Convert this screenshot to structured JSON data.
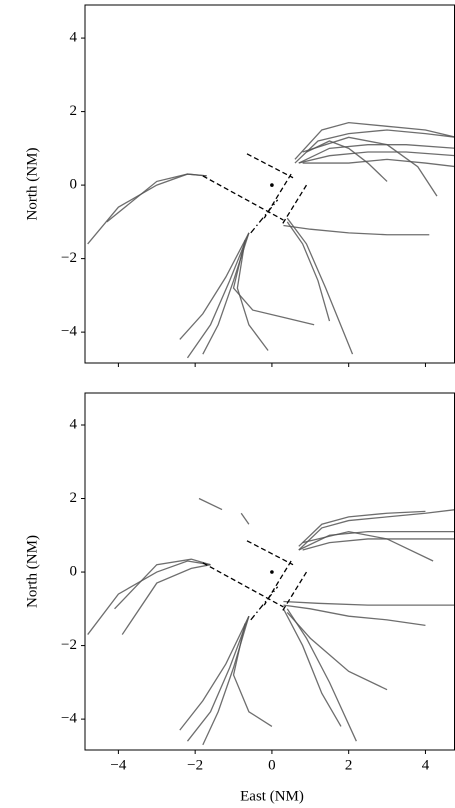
{
  "chart_data": [
    {
      "type": "line",
      "ylabel": "North (NM)",
      "xlim": [
        -4.87,
        4.77
      ],
      "ylim": [
        -4.84,
        4.9
      ],
      "xticks": [
        -4,
        -2,
        0,
        2,
        4
      ],
      "show_xticklabels": false,
      "yticks": [
        {
          "value": -4,
          "label": "−4"
        },
        {
          "value": -2,
          "label": "−2"
        },
        0,
        2,
        4
      ],
      "color": "#555555",
      "series": [
        {
          "x": [
            0.6,
            1.2,
            2,
            3,
            4,
            4.8
          ],
          "values": [
            0.6,
            1.2,
            1.4,
            1.5,
            1.4,
            1.3
          ]
        },
        {
          "x": [
            0.6,
            1.3,
            2,
            3,
            4,
            4.8
          ],
          "values": [
            0.7,
            1.5,
            1.7,
            1.6,
            1.5,
            1.3
          ]
        },
        {
          "x": [
            0.7,
            1.5,
            2.5,
            3.5,
            4.8
          ],
          "values": [
            0.6,
            1.0,
            1.1,
            1.1,
            1.0
          ]
        },
        {
          "x": [
            0.7,
            1.5,
            2.5,
            3.5,
            4.8
          ],
          "values": [
            0.6,
            0.8,
            0.9,
            0.9,
            0.8
          ]
        },
        {
          "x": [
            0.8,
            2,
            3,
            4,
            4.8
          ],
          "values": [
            0.6,
            0.6,
            0.7,
            0.6,
            0.5
          ]
        },
        {
          "x": [
            0.8,
            2,
            3,
            3.8,
            4.3
          ],
          "values": [
            0.9,
            1.3,
            1.1,
            0.5,
            -0.3
          ]
        },
        {
          "x": [
            0.9,
            1.5,
            2,
            2.5,
            3
          ],
          "values": [
            0.9,
            1.2,
            1.0,
            0.6,
            0.1
          ]
        },
        {
          "x": [
            -1.7,
            -2.2,
            -3,
            -4,
            -4.8
          ],
          "values": [
            0.25,
            0.3,
            0.0,
            -0.6,
            -1.6
          ]
        },
        {
          "x": [
            -1.7,
            -2.2,
            -3,
            -4.3
          ],
          "values": [
            0.25,
            0.3,
            0.1,
            -1.0
          ]
        },
        {
          "x": [
            -0.6,
            -1.2,
            -1.8,
            -2.4
          ],
          "values": [
            -1.3,
            -2.5,
            -3.5,
            -4.2
          ]
        },
        {
          "x": [
            -0.6,
            -1.1,
            -1.6,
            -2.2
          ],
          "values": [
            -1.3,
            -2.6,
            -3.8,
            -4.7
          ]
        },
        {
          "x": [
            -0.6,
            -1.0,
            -1.4,
            -1.8
          ],
          "values": [
            -1.3,
            -2.6,
            -3.8,
            -4.6
          ]
        },
        {
          "x": [
            -0.7,
            -1.0,
            -0.5,
            0.3,
            1.1
          ],
          "values": [
            -1.5,
            -2.8,
            -3.4,
            -3.6,
            -3.8
          ]
        },
        {
          "x": [
            -0.7,
            -0.9,
            -0.6,
            -0.1
          ],
          "values": [
            -1.5,
            -2.8,
            -3.8,
            -4.5
          ]
        },
        {
          "x": [
            0.3,
            1,
            2,
            3,
            4.1
          ],
          "values": [
            -1.1,
            -1.2,
            -1.3,
            -1.35,
            -1.35
          ]
        },
        {
          "x": [
            0.4,
            0.9,
            1.4,
            2.1
          ],
          "values": [
            -0.9,
            -1.6,
            -2.8,
            -4.6
          ]
        },
        {
          "x": [
            0.4,
            0.8,
            1.2,
            1.5
          ],
          "values": [
            -1.0,
            -1.6,
            -2.6,
            -3.7
          ]
        }
      ],
      "runways": [
        {
          "x": [
            -1.8,
            0.3
          ],
          "values": [
            0.25,
            -0.95
          ],
          "dash": "dashed"
        },
        {
          "x": [
            -0.65,
            0.55
          ],
          "values": [
            0.85,
            0.2
          ],
          "dash": "dashed"
        },
        {
          "x": [
            0.5,
            -0.2
          ],
          "values": [
            0.3,
            -0.9
          ],
          "dash": "dashed"
        },
        {
          "x": [
            0.9,
            0.25
          ],
          "values": [
            0.0,
            -1.1
          ],
          "dash": "dashed"
        },
        {
          "x": [
            -0.55,
            0.15
          ],
          "values": [
            -1.3,
            -0.4
          ],
          "dash": "dashdot"
        }
      ],
      "points": {
        "x": [
          0
        ],
        "values": [
          0
        ]
      }
    },
    {
      "type": "line",
      "xlabel": "East (NM)",
      "ylabel": "North (NM)",
      "xlim": [
        -4.87,
        4.77
      ],
      "ylim": [
        -4.84,
        4.87
      ],
      "xticks": [
        {
          "value": -4,
          "label": "−4"
        },
        {
          "value": -2,
          "label": "−2"
        },
        0,
        2,
        4
      ],
      "show_xticklabels": true,
      "yticks": [
        {
          "value": -4,
          "label": "−4"
        },
        {
          "value": -2,
          "label": "−2"
        },
        0,
        2,
        4
      ],
      "color": "#555555",
      "series": [
        {
          "x": [
            0.7,
            1.3,
            2,
            3,
            4,
            4.8
          ],
          "values": [
            0.6,
            1.2,
            1.4,
            1.5,
            1.6,
            1.7
          ]
        },
        {
          "x": [
            0.7,
            1.3,
            2,
            3,
            4
          ],
          "values": [
            0.7,
            1.3,
            1.5,
            1.6,
            1.65
          ]
        },
        {
          "x": [
            0.7,
            1.5,
            2.5,
            3.5,
            4.8
          ],
          "values": [
            0.6,
            1.0,
            1.1,
            1.1,
            1.1
          ]
        },
        {
          "x": [
            0.8,
            1.5,
            2.5,
            3.5,
            4.8
          ],
          "values": [
            0.6,
            0.8,
            0.9,
            0.9,
            0.9
          ]
        },
        {
          "x": [
            0.8,
            2,
            3,
            4.2
          ],
          "values": [
            0.8,
            1.1,
            0.9,
            0.3
          ]
        },
        {
          "x": [
            -1.6,
            -2.2,
            -3,
            -4,
            -4.8
          ],
          "values": [
            0.2,
            0.3,
            0.0,
            -0.6,
            -1.7
          ]
        },
        {
          "x": [
            -1.6,
            -2.1,
            -3,
            -4.1
          ],
          "values": [
            0.2,
            0.35,
            0.2,
            -1.0
          ]
        },
        {
          "x": [
            -1.6,
            -2.1,
            -3,
            -3.9
          ],
          "values": [
            0.2,
            0.1,
            -0.3,
            -1.7
          ]
        },
        {
          "x": [
            -1.9,
            -1.3
          ],
          "values": [
            2.0,
            1.7
          ]
        },
        {
          "x": [
            -0.8,
            -0.6
          ],
          "values": [
            1.6,
            1.3
          ]
        },
        {
          "x": [
            -0.6,
            -1.2,
            -1.8,
            -2.4
          ],
          "values": [
            -1.2,
            -2.5,
            -3.5,
            -4.3
          ]
        },
        {
          "x": [
            -0.6,
            -1.1,
            -1.6,
            -2.2
          ],
          "values": [
            -1.2,
            -2.6,
            -3.8,
            -4.6
          ]
        },
        {
          "x": [
            -0.6,
            -1.0,
            -1.4,
            -1.8
          ],
          "values": [
            -1.2,
            -2.6,
            -3.8,
            -4.7
          ]
        },
        {
          "x": [
            -0.7,
            -1.0,
            -0.6,
            0
          ],
          "values": [
            -1.4,
            -2.8,
            -3.8,
            -4.2
          ]
        },
        {
          "x": [
            0.3,
            1,
            2,
            3,
            4
          ],
          "values": [
            -0.9,
            -1.0,
            -1.2,
            -1.3,
            -1.45
          ]
        },
        {
          "x": [
            0.3,
            1.2,
            2.5,
            3.8,
            4.8
          ],
          "values": [
            -0.8,
            -0.85,
            -0.9,
            -0.9,
            -0.9
          ]
        },
        {
          "x": [
            0.4,
            1,
            2,
            3
          ],
          "values": [
            -1.1,
            -1.8,
            -2.7,
            -3.2
          ]
        },
        {
          "x": [
            0.4,
            0.9,
            1.5,
            2.2
          ],
          "values": [
            -1.0,
            -1.8,
            -3.0,
            -4.6
          ]
        },
        {
          "x": [
            0.3,
            0.8,
            1.3,
            1.8
          ],
          "values": [
            -1.0,
            -2.0,
            -3.3,
            -4.2
          ]
        }
      ],
      "runways": [
        {
          "x": [
            -1.8,
            0.3
          ],
          "values": [
            0.25,
            -0.95
          ],
          "dash": "dashed"
        },
        {
          "x": [
            -0.65,
            0.55
          ],
          "values": [
            0.85,
            0.2
          ],
          "dash": "dashed"
        },
        {
          "x": [
            0.5,
            -0.2
          ],
          "values": [
            0.3,
            -0.9
          ],
          "dash": "dashed"
        },
        {
          "x": [
            0.9,
            0.25
          ],
          "values": [
            0.0,
            -1.1
          ],
          "dash": "dashed"
        },
        {
          "x": [
            -0.55,
            0.15
          ],
          "values": [
            -1.3,
            -0.4
          ],
          "dash": "dashdot"
        }
      ],
      "points": {
        "x": [
          0
        ],
        "values": [
          0
        ]
      }
    }
  ]
}
